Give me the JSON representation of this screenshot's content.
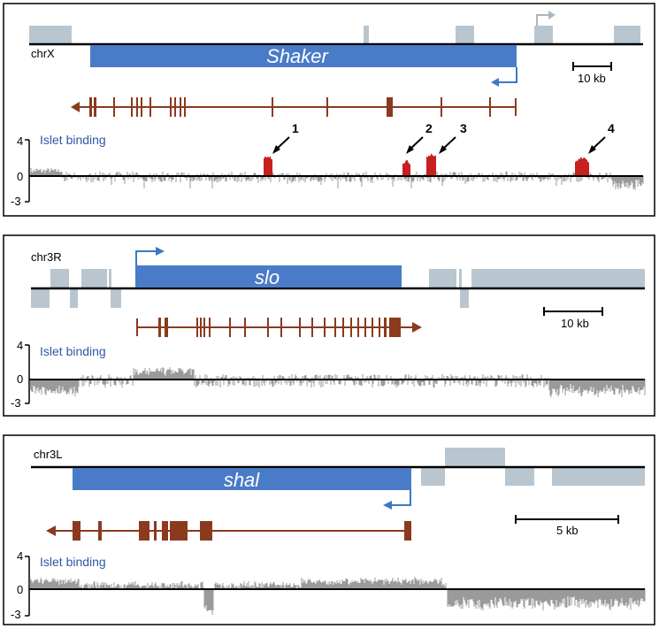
{
  "colors": {
    "gene_bar": "#4a7bc8",
    "neighbor_gene": "#b9c6cf",
    "transcript": "#8b3a1e",
    "signal": "#9a9a9a",
    "peak": "#c8201e",
    "label_blue": "#2f57a6",
    "tss_arrow_blue": "#3b78c8",
    "tss_arrow_gray": "#a8b8c2"
  },
  "panels": [
    {
      "chromosome": "chrX",
      "gene": "Shaker",
      "strand": "minus",
      "scale_label": "10 kb",
      "track_label": "Islet binding",
      "y_ticks": [
        "4",
        "0",
        "-3"
      ],
      "peaks": [
        "1",
        "2",
        "3",
        "4"
      ]
    },
    {
      "chromosome": "chr3R",
      "gene": "slo",
      "strand": "plus",
      "scale_label": "10 kb",
      "track_label": "Islet binding",
      "y_ticks": [
        "4",
        "0",
        "-3"
      ],
      "peaks": []
    },
    {
      "chromosome": "chr3L",
      "gene": "shal",
      "strand": "minus",
      "scale_label": "5 kb",
      "track_label": "Islet binding",
      "y_ticks": [
        "4",
        "0",
        "-3"
      ],
      "peaks": []
    }
  ]
}
